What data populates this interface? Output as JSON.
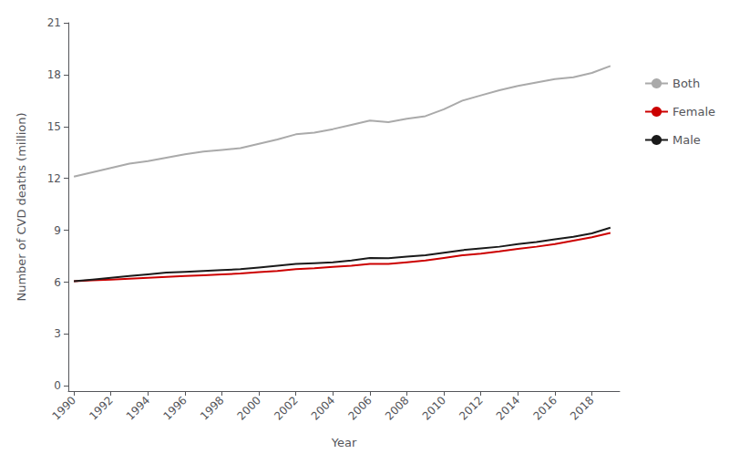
{
  "chart_data": {
    "type": "line",
    "xlabel": "Year",
    "ylabel": "Number of CVD deaths (million)",
    "x": [
      1990,
      1991,
      1992,
      1993,
      1994,
      1995,
      1996,
      1997,
      1998,
      1999,
      2000,
      2001,
      2002,
      2003,
      2004,
      2005,
      2006,
      2007,
      2008,
      2009,
      2010,
      2011,
      2012,
      2013,
      2014,
      2015,
      2016,
      2017,
      2018,
      2019
    ],
    "series": [
      {
        "name": "Both",
        "color": "#aaaaaa",
        "values": [
          12.1,
          12.35,
          12.6,
          12.85,
          13.0,
          13.2,
          13.4,
          13.55,
          13.65,
          13.75,
          14.0,
          14.25,
          14.55,
          14.65,
          14.85,
          15.1,
          15.35,
          15.25,
          15.45,
          15.6,
          16.0,
          16.5,
          16.8,
          17.1,
          17.35,
          17.55,
          17.75,
          17.85,
          18.1,
          18.5
        ]
      },
      {
        "name": "Female",
        "color": "#cc0000",
        "values": [
          6.05,
          6.1,
          6.15,
          6.2,
          6.25,
          6.3,
          6.35,
          6.4,
          6.45,
          6.5,
          6.58,
          6.65,
          6.75,
          6.8,
          6.88,
          6.95,
          7.05,
          7.05,
          7.15,
          7.25,
          7.4,
          7.55,
          7.65,
          7.78,
          7.92,
          8.05,
          8.2,
          8.4,
          8.6,
          8.85
        ]
      },
      {
        "name": "Male",
        "color": "#1a1a1a",
        "values": [
          6.05,
          6.15,
          6.25,
          6.35,
          6.45,
          6.55,
          6.6,
          6.65,
          6.7,
          6.75,
          6.85,
          6.95,
          7.05,
          7.1,
          7.15,
          7.25,
          7.4,
          7.38,
          7.48,
          7.55,
          7.7,
          7.85,
          7.95,
          8.05,
          8.2,
          8.32,
          8.48,
          8.62,
          8.82,
          9.15
        ]
      }
    ],
    "xlim": [
      1989.7,
      2019.5
    ],
    "xticks": [
      1990,
      1992,
      1994,
      1996,
      1998,
      2000,
      2002,
      2004,
      2006,
      2008,
      2010,
      2012,
      2014,
      2016,
      2018
    ],
    "ylim": [
      -0.3,
      21
    ],
    "yticks": [
      0,
      3,
      6,
      9,
      12,
      15,
      18,
      21
    ],
    "grid": false,
    "legend": "right"
  }
}
